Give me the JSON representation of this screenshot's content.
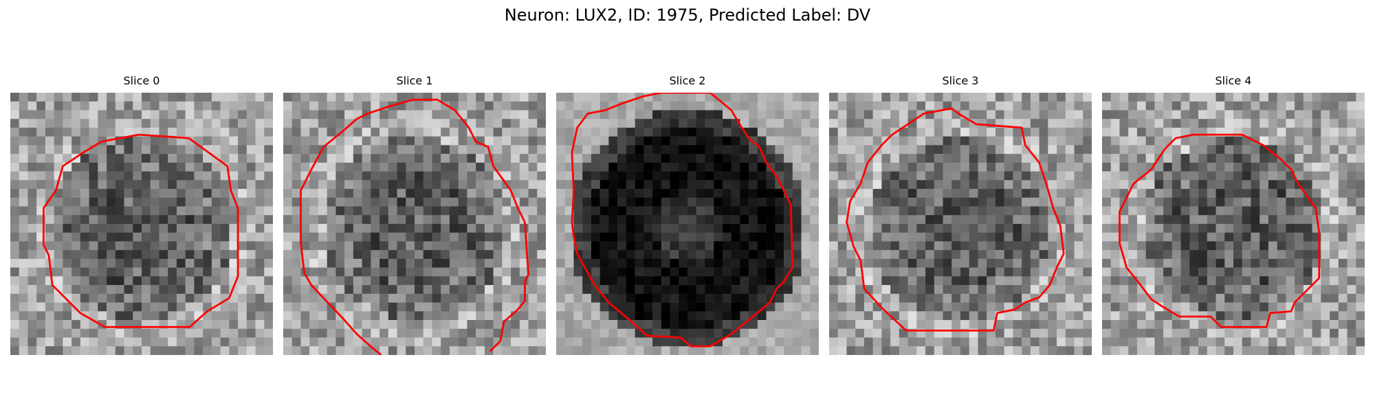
{
  "figure": {
    "title": "Neuron: LUX2, ID: 1975, Predicted Label: DV"
  },
  "panels": [
    {
      "title": "Slice 0",
      "tone": "light"
    },
    {
      "title": "Slice 1",
      "tone": "light"
    },
    {
      "title": "Slice 2",
      "tone": "dark"
    },
    {
      "title": "Slice 3",
      "tone": "light"
    },
    {
      "title": "Slice 4",
      "tone": "light"
    }
  ],
  "colors": {
    "contour": "#ff0000",
    "background": "#ffffff"
  },
  "image_meta": {
    "colormap": "gray",
    "grid_cells": 30
  }
}
